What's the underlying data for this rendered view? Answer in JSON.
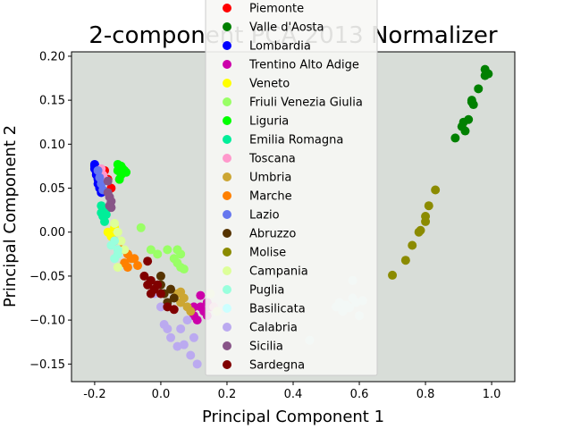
{
  "chart_data": {
    "type": "scatter",
    "title": "2-component PCA 2013 Normalizer",
    "xlabel": "Principal Component 1",
    "ylabel": "Principal Component 2",
    "xlim": [
      -0.27,
      1.07
    ],
    "ylim": [
      -0.17,
      0.205
    ],
    "xticks": [
      "-0.2",
      "0.0",
      "0.2",
      "0.4",
      "0.6",
      "0.8",
      "1.0"
    ],
    "xtick_values": [
      -0.2,
      0.0,
      0.2,
      0.4,
      0.6,
      0.8,
      1.0
    ],
    "yticks": [
      "0.20",
      "0.15",
      "0.10",
      "0.05",
      "0.00",
      "−0.05",
      "−0.10",
      "−0.15"
    ],
    "ytick_values": [
      0.2,
      0.15,
      0.1,
      0.05,
      0.0,
      -0.05,
      -0.1,
      -0.15
    ],
    "grid": false,
    "legend_position": "upper center, overlapping plot",
    "background_color": "#d8ddd8",
    "series": [
      {
        "name": "Piemonte",
        "color": "#ff0000",
        "points": [
          [
            -0.17,
            0.07
          ],
          [
            -0.16,
            0.06
          ],
          [
            -0.15,
            0.05
          ]
        ]
      },
      {
        "name": "Valle d'Aosta",
        "color": "#008000",
        "points": [
          [
            0.98,
            0.185
          ],
          [
            0.99,
            0.18
          ],
          [
            0.98,
            0.178
          ],
          [
            0.96,
            0.163
          ],
          [
            0.94,
            0.15
          ],
          [
            0.945,
            0.145
          ],
          [
            0.94,
            0.148
          ],
          [
            0.93,
            0.128
          ],
          [
            0.915,
            0.125
          ],
          [
            0.92,
            0.115
          ],
          [
            0.89,
            0.107
          ],
          [
            0.91,
            0.12
          ]
        ]
      },
      {
        "name": "Lombardia",
        "color": "#0000ff",
        "points": [
          [
            -0.2,
            0.077
          ],
          [
            -0.2,
            0.072
          ],
          [
            -0.195,
            0.068
          ],
          [
            -0.19,
            0.06
          ],
          [
            -0.19,
            0.055
          ],
          [
            -0.185,
            0.05
          ],
          [
            -0.18,
            0.045
          ],
          [
            -0.2,
            0.075
          ],
          [
            -0.195,
            0.065
          ],
          [
            -0.188,
            0.058
          ]
        ]
      },
      {
        "name": "Trentino Alto Adige",
        "color": "#cc00aa",
        "points": [
          [
            0.12,
            -0.072
          ],
          [
            0.14,
            -0.08
          ],
          [
            0.13,
            -0.09
          ],
          [
            0.11,
            -0.1
          ],
          [
            0.1,
            -0.095
          ],
          [
            0.15,
            -0.085
          ],
          [
            0.12,
            -0.085
          ],
          [
            0.14,
            -0.095
          ],
          [
            0.1,
            -0.085
          ]
        ]
      },
      {
        "name": "Veneto",
        "color": "#ffff00",
        "points": [
          [
            -0.15,
            -0.005
          ],
          [
            -0.16,
            0.0
          ],
          [
            -0.14,
            0.005
          ]
        ]
      },
      {
        "name": "Friuli Venezia Giulia",
        "color": "#99ff66",
        "points": [
          [
            -0.06,
            0.005
          ],
          [
            -0.03,
            -0.02
          ],
          [
            -0.01,
            -0.025
          ],
          [
            0.02,
            -0.02
          ],
          [
            0.04,
            -0.03
          ],
          [
            0.05,
            -0.035
          ],
          [
            0.06,
            -0.04
          ],
          [
            0.07,
            -0.042
          ],
          [
            0.05,
            -0.02
          ],
          [
            0.06,
            -0.025
          ]
        ]
      },
      {
        "name": "Liguria",
        "color": "#00ff00",
        "points": [
          [
            -0.13,
            0.077
          ],
          [
            -0.12,
            0.075
          ],
          [
            -0.11,
            0.07
          ],
          [
            -0.12,
            0.065
          ],
          [
            -0.125,
            0.06
          ],
          [
            -0.115,
            0.072
          ],
          [
            -0.105,
            0.068
          ],
          [
            -0.13,
            0.07
          ]
        ]
      },
      {
        "name": "Emilia Romagna",
        "color": "#00ee99",
        "points": [
          [
            -0.18,
            0.03
          ],
          [
            -0.17,
            0.025
          ],
          [
            -0.175,
            0.018
          ],
          [
            -0.17,
            0.012
          ],
          [
            -0.165,
            0.02
          ],
          [
            -0.18,
            0.022
          ]
        ]
      },
      {
        "name": "Toscana",
        "color": "#ff99cc",
        "points": [
          [
            -0.18,
            0.072
          ],
          [
            -0.175,
            0.065
          ],
          [
            -0.17,
            0.06
          ],
          [
            0.16,
            -0.085
          ]
        ]
      },
      {
        "name": "Umbria",
        "color": "#cca633",
        "points": [
          [
            0.05,
            -0.07
          ],
          [
            0.07,
            -0.075
          ],
          [
            0.06,
            -0.08
          ],
          [
            0.08,
            -0.085
          ],
          [
            0.09,
            -0.09
          ],
          [
            0.06,
            -0.068
          ]
        ]
      },
      {
        "name": "Marche",
        "color": "#ff8000",
        "points": [
          [
            -0.14,
            -0.01
          ],
          [
            -0.12,
            -0.02
          ],
          [
            -0.1,
            -0.025
          ],
          [
            -0.09,
            -0.03
          ],
          [
            -0.11,
            -0.035
          ],
          [
            -0.1,
            -0.04
          ],
          [
            -0.08,
            -0.03
          ],
          [
            -0.07,
            -0.038
          ]
        ]
      },
      {
        "name": "Lazio",
        "color": "#6677ee",
        "points": [
          [
            -0.19,
            0.07
          ],
          [
            -0.185,
            0.062
          ],
          [
            -0.18,
            0.055
          ],
          [
            -0.175,
            0.048
          ]
        ]
      },
      {
        "name": "Abruzzo",
        "color": "#553300",
        "points": [
          [
            0.0,
            -0.06
          ],
          [
            0.01,
            -0.07
          ],
          [
            0.02,
            -0.08
          ],
          [
            0.04,
            -0.075
          ],
          [
            0.03,
            -0.065
          ],
          [
            0.0,
            -0.05
          ]
        ]
      },
      {
        "name": "Molise",
        "color": "#8b8b00",
        "points": [
          [
            0.83,
            0.048
          ],
          [
            0.81,
            0.03
          ],
          [
            0.8,
            0.018
          ],
          [
            0.8,
            0.012
          ],
          [
            0.785,
            0.002
          ],
          [
            0.78,
            0.0
          ],
          [
            0.76,
            -0.015
          ],
          [
            0.74,
            -0.032
          ],
          [
            0.7,
            -0.049
          ]
        ]
      },
      {
        "name": "Campania",
        "color": "#ddff99",
        "points": [
          [
            -0.14,
            0.01
          ],
          [
            -0.13,
            0.0
          ],
          [
            -0.12,
            -0.01
          ],
          [
            -0.11,
            -0.02
          ],
          [
            -0.13,
            -0.04
          ],
          [
            0.15,
            -0.07
          ],
          [
            0.17,
            -0.09
          ]
        ]
      },
      {
        "name": "Puglia",
        "color": "#99ffdd",
        "points": [
          [
            -0.14,
            -0.01
          ],
          [
            -0.13,
            -0.02
          ],
          [
            -0.14,
            -0.03
          ],
          [
            -0.13,
            -0.025
          ],
          [
            -0.15,
            -0.015
          ]
        ]
      },
      {
        "name": "Basilicata",
        "color": "#ccffff",
        "points": [
          [
            0.45,
            -0.123
          ],
          [
            0.53,
            -0.085
          ],
          [
            0.54,
            -0.08
          ],
          [
            0.55,
            -0.09
          ],
          [
            0.56,
            -0.083
          ],
          [
            0.57,
            -0.086
          ],
          [
            0.58,
            -0.075
          ],
          [
            0.59,
            -0.08
          ],
          [
            0.6,
            -0.095
          ],
          [
            0.61,
            -0.078
          ],
          [
            0.58,
            -0.055
          ]
        ]
      },
      {
        "name": "Calabria",
        "color": "#bbaaf0",
        "points": [
          [
            -0.02,
            -0.07
          ],
          [
            0.0,
            -0.085
          ],
          [
            0.01,
            -0.105
          ],
          [
            0.02,
            -0.11
          ],
          [
            0.03,
            -0.12
          ],
          [
            0.05,
            -0.13
          ],
          [
            0.06,
            -0.11
          ],
          [
            0.08,
            -0.1
          ],
          [
            0.1,
            -0.12
          ],
          [
            0.11,
            -0.15
          ],
          [
            0.07,
            -0.128
          ],
          [
            0.09,
            -0.14
          ]
        ]
      },
      {
        "name": "Sicilia",
        "color": "#885588",
        "points": [
          [
            -0.16,
            0.058
          ],
          [
            -0.16,
            0.045
          ],
          [
            -0.155,
            0.04
          ],
          [
            -0.15,
            0.035
          ],
          [
            -0.155,
            0.03
          ],
          [
            -0.15,
            0.028
          ]
        ]
      },
      {
        "name": "Sardegna",
        "color": "#800000",
        "points": [
          [
            -0.04,
            -0.033
          ],
          [
            -0.05,
            -0.05
          ],
          [
            -0.04,
            -0.06
          ],
          [
            -0.03,
            -0.055
          ],
          [
            -0.02,
            -0.065
          ],
          [
            -0.01,
            -0.06
          ],
          [
            0.0,
            -0.07
          ],
          [
            0.02,
            -0.085
          ],
          [
            0.04,
            -0.088
          ],
          [
            -0.03,
            -0.07
          ]
        ]
      }
    ]
  }
}
